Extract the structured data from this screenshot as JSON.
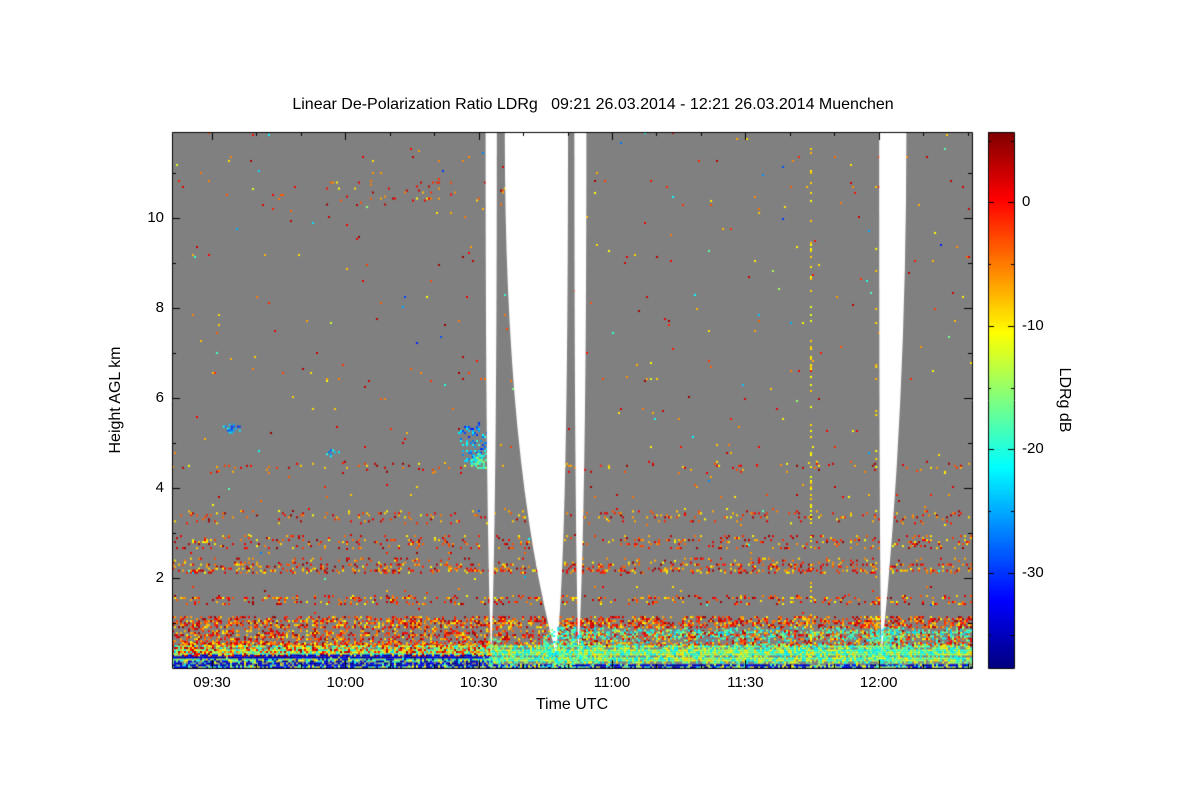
{
  "title": "Linear De-Polarization Ratio LDRg   09:21 26.03.2014 - 12:21 26.03.2014 Muenchen",
  "axes": {
    "x_label": "Time UTC",
    "y_label": "Height AGL km",
    "colorbar_label": "LDRg dB"
  },
  "chart_data": {
    "type": "heatmap",
    "title": "Linear De-Polarization Ratio LDRg",
    "time_range": "09:21 26.03.2014 - 12:21 26.03.2014",
    "station": "Muenchen",
    "x_axis": {
      "label": "Time UTC",
      "range_hours": [
        9.35,
        12.35
      ],
      "tick_hours": [
        9.5,
        10,
        10.5,
        11,
        11.5,
        12
      ],
      "ticks": [
        "09:30",
        "10:00",
        "10:30",
        "11:00",
        "11:30",
        "12:00"
      ],
      "minor_tick_minutes": 10
    },
    "y_axis": {
      "label": "Height AGL km",
      "range_km": [
        0,
        11.9
      ],
      "tick_km": [
        2,
        4,
        6,
        8,
        10
      ],
      "minor_tick_km": [
        1,
        3,
        5,
        7,
        9,
        11
      ]
    },
    "colorbar": {
      "label": "LDRg dB",
      "range_db": [
        -37.7,
        5.7
      ],
      "tick_db": [
        0,
        -10,
        -20,
        -30
      ],
      "minor_tick_db": [
        5,
        -5,
        -15,
        -25,
        -35
      ],
      "colormap": "jet",
      "stops": [
        [
          0,
          "#7f0000"
        ],
        [
          0.125,
          "#ff0000"
        ],
        [
          0.25,
          "#ff7f00"
        ],
        [
          0.375,
          "#ffff00"
        ],
        [
          0.5,
          "#7fff7f"
        ],
        [
          0.625,
          "#00ffff"
        ],
        [
          0.75,
          "#007fff"
        ],
        [
          0.875,
          "#0000ff"
        ],
        [
          1,
          "#00007f"
        ]
      ]
    },
    "background_color": "#808080",
    "frame_color": "#000000",
    "seed": 42,
    "palettes": {
      "warm": [
        0.02,
        0.38
      ],
      "yellow": [
        0.3,
        0.4
      ],
      "mix_bottom": [
        0.33,
        0.66
      ],
      "green_cyan": [
        0.45,
        0.68
      ],
      "cyan_blue": [
        0.58,
        0.85
      ],
      "navy": [
        0.86,
        1.0
      ],
      "all": [
        0.02,
        0.85
      ]
    },
    "features": [
      {
        "type": "field",
        "x": [
          0,
          1
        ],
        "h": [
          0.6,
          11.9
        ],
        "density": 0.0045,
        "palette": "warm",
        "streaky": true
      },
      {
        "type": "field",
        "x": [
          0,
          1
        ],
        "h": [
          1.2,
          11.9
        ],
        "density": 0.0012,
        "palette": "all"
      },
      {
        "type": "band",
        "x": [
          0,
          1
        ],
        "h": [
          0.5,
          1.15
        ],
        "density": 0.34,
        "palette": "warm"
      },
      {
        "type": "band",
        "x": [
          0,
          1
        ],
        "h": [
          1.42,
          1.62
        ],
        "density": 0.22,
        "palette": "warm"
      },
      {
        "type": "band",
        "x": [
          0,
          1
        ],
        "h": [
          2.12,
          2.45
        ],
        "density": 0.25,
        "palette": "warm"
      },
      {
        "type": "band",
        "x": [
          0,
          1
        ],
        "h": [
          2.65,
          2.95
        ],
        "density": 0.12,
        "palette": "warm"
      },
      {
        "type": "band",
        "x": [
          0,
          1
        ],
        "h": [
          3.2,
          3.5
        ],
        "density": 0.08,
        "palette": "warm"
      },
      {
        "type": "band",
        "x": [
          0,
          1
        ],
        "h": [
          4.35,
          4.6
        ],
        "density": 0.05,
        "palette": "warm"
      },
      {
        "type": "band",
        "x": [
          0.18,
          0.42
        ],
        "h": [
          10.3,
          10.8
        ],
        "density": 0.04,
        "palette": "warm"
      },
      {
        "type": "band",
        "x": [
          0,
          1
        ],
        "h": [
          0.05,
          0.5
        ],
        "density": 0.85,
        "palette": "mix_bottom"
      },
      {
        "type": "band",
        "x": [
          0,
          0.4
        ],
        "h": [
          0.28,
          0.6
        ],
        "density": 0.5,
        "palette": "warm"
      },
      {
        "type": "band",
        "x": [
          0,
          0.4
        ],
        "h": [
          0.1,
          0.3
        ],
        "density": 0.6,
        "palette": "navy"
      },
      {
        "type": "band",
        "x": [
          0,
          1
        ],
        "h": [
          0,
          0.08
        ],
        "density": 0.45,
        "palette": "navy"
      },
      {
        "type": "band",
        "x": [
          0.5,
          1
        ],
        "h": [
          0.25,
          0.9
        ],
        "density": 0.3,
        "palette": "green_cyan",
        "fade": "top"
      },
      {
        "type": "blob",
        "cx": 0.073,
        "ch": 5.35,
        "rx": 0.012,
        "ry": 0.12,
        "density": 0.55,
        "palette": "cyan_blue"
      },
      {
        "type": "blob",
        "cx": 0.2,
        "ch": 4.8,
        "rx": 0.01,
        "ry": 0.1,
        "density": 0.5,
        "palette": "cyan_blue"
      },
      {
        "type": "blob",
        "cx": 0.375,
        "ch": 5.05,
        "rx": 0.02,
        "ry": 0.5,
        "density": 0.28,
        "palette": "cyan_blue"
      },
      {
        "type": "blob",
        "cx": 0.384,
        "ch": 4.62,
        "rx": 0.013,
        "ry": 0.2,
        "density": 0.8,
        "palette": "green_cyan"
      },
      {
        "type": "vline",
        "x": 0.7975,
        "h": [
          0,
          11.9
        ],
        "density": 0.28,
        "palette": "yellow"
      },
      {
        "type": "blob",
        "cx": 0.401,
        "ch": 0.35,
        "rx": 0.015,
        "ry": 0.35,
        "density": 0.45,
        "palette": "green_cyan",
        "after": true
      },
      {
        "type": "blob",
        "cx": 0.489,
        "ch": 0.45,
        "rx": 0.03,
        "ry": 0.55,
        "density": 0.55,
        "palette": "green_cyan",
        "after": true
      },
      {
        "type": "blob",
        "cx": 0.893,
        "ch": 0.45,
        "rx": 0.026,
        "ry": 0.5,
        "density": 0.55,
        "palette": "green_cyan",
        "after": true
      },
      {
        "type": "vline",
        "x": 0.879,
        "h": [
          0,
          11.9
        ],
        "density": 0.1,
        "palette": "yellow",
        "after": true
      }
    ],
    "gaps": [
      {
        "top": [
          0.392,
          0.406
        ],
        "tip": 0.399,
        "tip_h": 0.2,
        "lc": 0.7,
        "rc": 0.7
      },
      {
        "top": [
          0.416,
          0.495
        ],
        "tip": 0.48,
        "tip_h": 0.3,
        "lc": 0.62,
        "rc": 0.8
      },
      {
        "top": [
          0.503,
          0.518
        ],
        "tip": 0.508,
        "tip_h": 0.2,
        "lc": 0.7,
        "rc": 0.7
      },
      {
        "top": [
          0.884,
          0.918
        ],
        "tip": 0.887,
        "tip_h": 0.3,
        "lc": 0.85,
        "rc": 0.52
      }
    ]
  }
}
